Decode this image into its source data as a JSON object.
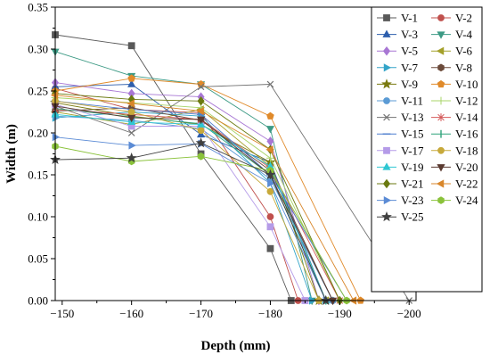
{
  "chart_data": {
    "type": "line",
    "title": "",
    "xlabel": "Depth (mm)",
    "ylabel": "Width (m)",
    "xlim": [
      -149,
      -201
    ],
    "ylim": [
      0,
      0.35
    ],
    "x_reversed": true,
    "x_ticks": [
      "−150",
      "−160",
      "−170",
      "−180",
      "−190",
      "−200"
    ],
    "x_tick_values": [
      -150,
      -160,
      -170,
      -180,
      -190,
      -200
    ],
    "y_ticks": [
      "0.00",
      "0.05",
      "0.10",
      "0.15",
      "0.20",
      "0.25",
      "0.30",
      "0.35"
    ],
    "y_tick_values": [
      0,
      0.05,
      0.1,
      0.15,
      0.2,
      0.25,
      0.3,
      0.35
    ],
    "grid": false,
    "legend_position": "top-right",
    "series": [
      {
        "name": "V-1",
        "color": "#595959",
        "marker": "square",
        "x": [
          -149,
          -160,
          -170,
          -180,
          -183
        ],
        "y": [
          0.317,
          0.304,
          0.175,
          0.062,
          0
        ]
      },
      {
        "name": "V-2",
        "color": "#c0504d",
        "marker": "circle",
        "x": [
          -149,
          -160,
          -170,
          -180,
          -184
        ],
        "y": [
          0.253,
          0.228,
          0.224,
          0.1,
          0
        ]
      },
      {
        "name": "V-3",
        "color": "#2e5fad",
        "marker": "triangle-up",
        "x": [
          -149,
          -160,
          -170,
          -180,
          -188
        ],
        "y": [
          0.255,
          0.258,
          0.198,
          0.165,
          0
        ]
      },
      {
        "name": "V-4",
        "color": "#3c9a84",
        "marker": "triangle-down",
        "x": [
          -149,
          -160,
          -170,
          -180,
          -186
        ],
        "y": [
          0.297,
          0.268,
          0.258,
          0.205,
          0
        ]
      },
      {
        "name": "V-5",
        "color": "#a877d4",
        "marker": "diamond",
        "x": [
          -149,
          -160,
          -170,
          -180,
          -187
        ],
        "y": [
          0.26,
          0.247,
          0.243,
          0.19,
          0
        ]
      },
      {
        "name": "V-6",
        "color": "#a4a02a",
        "marker": "triangle-left",
        "x": [
          -149,
          -160,
          -170,
          -180,
          -188
        ],
        "y": [
          0.225,
          0.21,
          0.228,
          0.16,
          0
        ]
      },
      {
        "name": "V-7",
        "color": "#33a4c8",
        "marker": "triangle-right",
        "x": [
          -149,
          -160,
          -170,
          -180,
          -186
        ],
        "y": [
          0.218,
          0.225,
          0.22,
          0.14,
          0
        ]
      },
      {
        "name": "V-8",
        "color": "#6b4a3a",
        "marker": "hexagon",
        "x": [
          -149,
          -160,
          -170,
          -180,
          -189
        ],
        "y": [
          0.226,
          0.23,
          0.215,
          0.155,
          0
        ]
      },
      {
        "name": "V-9",
        "color": "#7a7a10",
        "marker": "star",
        "x": [
          -149,
          -160,
          -170,
          -180,
          -187
        ],
        "y": [
          0.236,
          0.22,
          0.21,
          0.165,
          0
        ]
      },
      {
        "name": "V-10",
        "color": "#e08a2a",
        "marker": "pentagon",
        "x": [
          -149,
          -160,
          -170,
          -180,
          -193
        ],
        "y": [
          0.25,
          0.265,
          0.258,
          0.22,
          0
        ]
      },
      {
        "name": "V-11",
        "color": "#5b9bd5",
        "marker": "circle-half",
        "x": [
          -149,
          -160,
          -170,
          -180,
          -189
        ],
        "y": [
          0.22,
          0.215,
          0.205,
          0.145,
          0
        ]
      },
      {
        "name": "V-12",
        "color": "#a8d46a",
        "marker": "plus",
        "x": [
          -149,
          -160,
          -170,
          -180,
          -190
        ],
        "y": [
          0.242,
          0.236,
          0.23,
          0.17,
          0
        ]
      },
      {
        "name": "V-13",
        "color": "#737373",
        "marker": "cross",
        "x": [
          -149,
          -160,
          -170,
          -180,
          -200
        ],
        "y": [
          0.232,
          0.2,
          0.255,
          0.258,
          0
        ]
      },
      {
        "name": "V-14",
        "color": "#d45a5a",
        "marker": "asterisk",
        "x": [
          -149,
          -160,
          -170,
          -180,
          -190
        ],
        "y": [
          0.228,
          0.222,
          0.216,
          0.158,
          0
        ]
      },
      {
        "name": "V-15",
        "color": "#4f7fcf",
        "marker": "dash",
        "x": [
          -149,
          -160,
          -170,
          -180,
          -191
        ],
        "y": [
          0.238,
          0.228,
          0.222,
          0.15,
          0
        ]
      },
      {
        "name": "V-16",
        "color": "#2fa37a",
        "marker": "vline",
        "x": [
          -149,
          -160,
          -170,
          -180,
          -188
        ],
        "y": [
          0.229,
          0.219,
          0.211,
          0.15,
          0
        ]
      },
      {
        "name": "V-17",
        "color": "#b59be8",
        "marker": "square",
        "x": [
          -149,
          -160,
          -170,
          -180,
          -185
        ],
        "y": [
          0.234,
          0.208,
          0.208,
          0.088,
          0
        ]
      },
      {
        "name": "V-18",
        "color": "#c7a93a",
        "marker": "circle",
        "x": [
          -149,
          -160,
          -170,
          -180,
          -187
        ],
        "y": [
          0.238,
          0.225,
          0.203,
          0.13,
          0
        ]
      },
      {
        "name": "V-19",
        "color": "#2fc7d2",
        "marker": "triangle-up",
        "x": [
          -149,
          -160,
          -170,
          -180,
          -188
        ],
        "y": [
          0.222,
          0.213,
          0.21,
          0.16,
          0
        ]
      },
      {
        "name": "V-20",
        "color": "#5a3a30",
        "marker": "triangle-down",
        "x": [
          -149,
          -160,
          -170,
          -180,
          -189
        ],
        "y": [
          0.232,
          0.218,
          0.216,
          0.15,
          0
        ]
      },
      {
        "name": "V-21",
        "color": "#6b7a10",
        "marker": "diamond",
        "x": [
          -149,
          -160,
          -170,
          -180,
          -190
        ],
        "y": [
          0.247,
          0.24,
          0.238,
          0.18,
          0
        ]
      },
      {
        "name": "V-22",
        "color": "#d8862a",
        "marker": "triangle-left",
        "x": [
          -149,
          -160,
          -170,
          -180,
          -192
        ],
        "y": [
          0.245,
          0.235,
          0.226,
          0.18,
          0
        ]
      },
      {
        "name": "V-23",
        "color": "#5b8bd5",
        "marker": "triangle-right",
        "x": [
          -149,
          -160,
          -170,
          -180,
          -188
        ],
        "y": [
          0.195,
          0.185,
          0.187,
          0.14,
          0
        ]
      },
      {
        "name": "V-24",
        "color": "#8ac23a",
        "marker": "hexagon",
        "x": [
          -149,
          -160,
          -170,
          -180,
          -191
        ],
        "y": [
          0.184,
          0.166,
          0.172,
          0.155,
          0
        ]
      },
      {
        "name": "V-25",
        "color": "#404040",
        "marker": "star",
        "x": [
          -149,
          -160,
          -170,
          -180,
          -188
        ],
        "y": [
          0.168,
          0.17,
          0.188,
          0.15,
          0
        ]
      }
    ]
  }
}
